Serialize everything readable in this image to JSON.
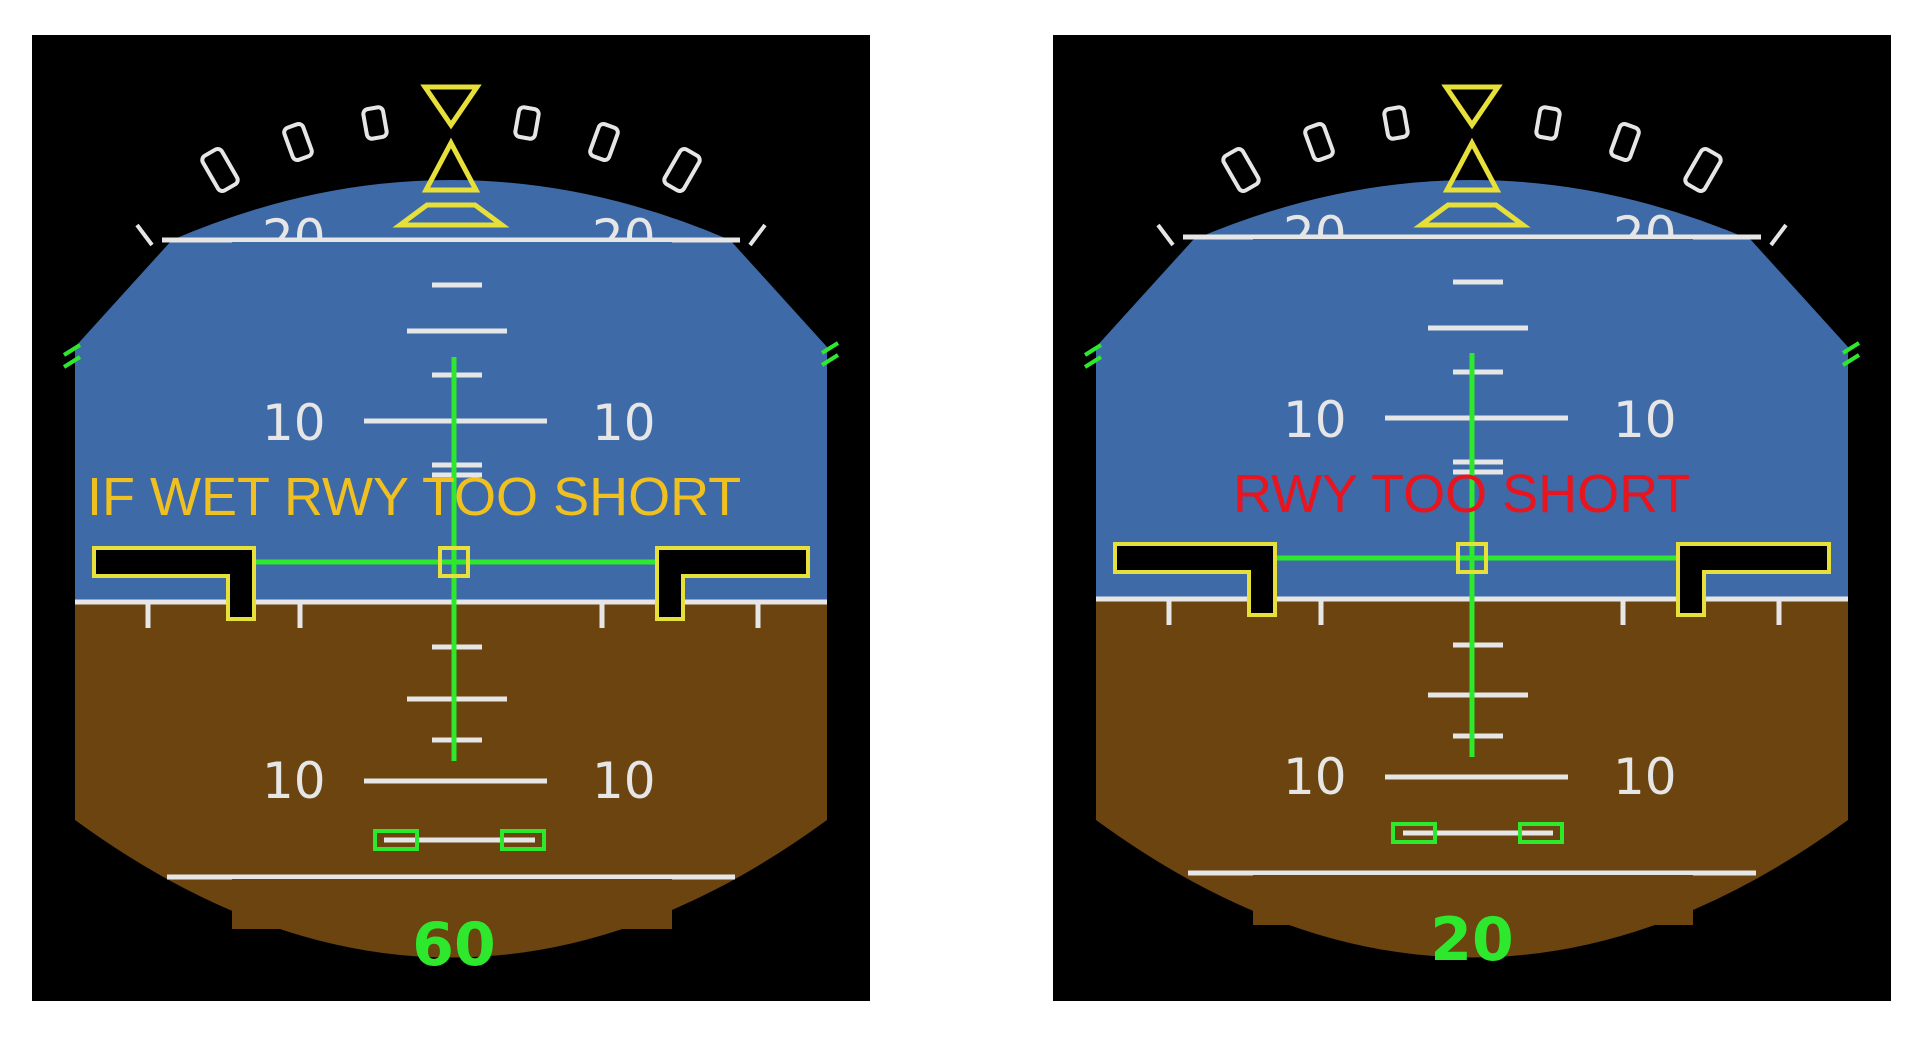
{
  "colors": {
    "sky": "#3e6aa8",
    "ground": "#6b4410",
    "scale": "#e6e6e6",
    "fd_bars": "#2ee82e",
    "aircraft_symbol": "#e8e03a",
    "caution_amber": "#f0c020",
    "warning_red": "#e8141e",
    "background": "#000000"
  },
  "displays": [
    {
      "pitch_scale": {
        "upper_left": "10",
        "upper_right": "10",
        "lower_left": "10",
        "lower_right": "10"
      },
      "message": {
        "text": "IF WET RWY TOO SHORT",
        "severity": "caution"
      },
      "radio_altitude": "60"
    },
    {
      "pitch_scale": {
        "upper_left": "10",
        "upper_right": "10",
        "lower_left": "10",
        "lower_right": "10"
      },
      "message": {
        "text": "RWY TOO SHORT",
        "severity": "warning"
      },
      "radio_altitude": "20"
    }
  ],
  "icons": [
    "bank-pointer-icon",
    "sky-pointer-icon",
    "aircraft-symbol-icon",
    "flight-director-bars-icon"
  ]
}
